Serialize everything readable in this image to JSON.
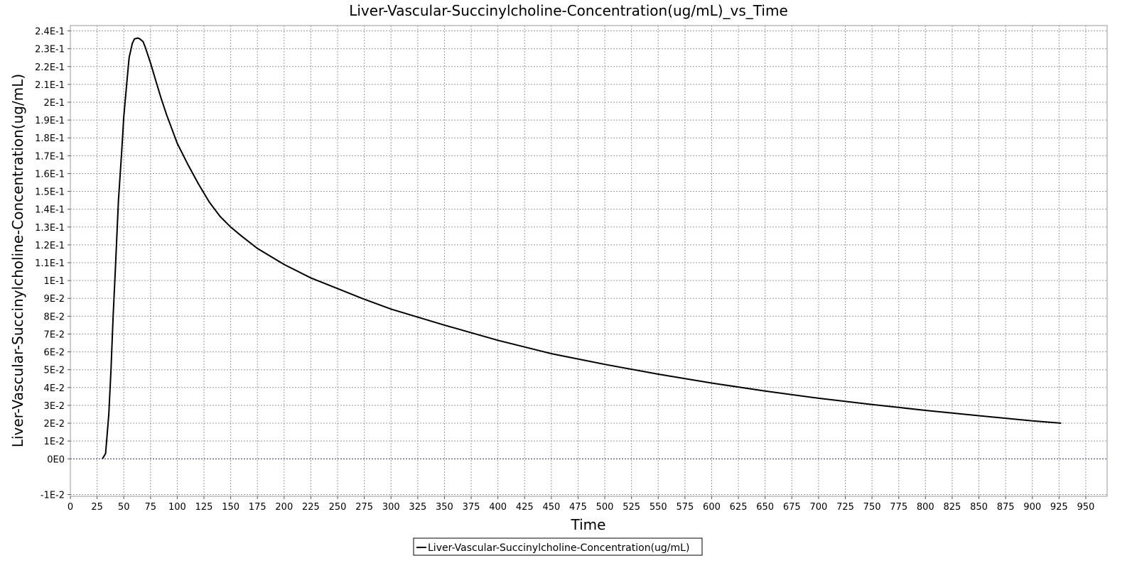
{
  "chart_data": {
    "type": "line",
    "title": "Liver-Vascular-Succinylcholine-Concentration(ug/mL)_vs_Time",
    "xlabel": "Time",
    "ylabel": "Liver-Vascular-Succinylcholine-Concentration(ug/mL)",
    "xlim": [
      0,
      970
    ],
    "ylim": [
      -0.021,
      0.243
    ],
    "grid": true,
    "legend_position": "bottom-center",
    "x_ticks": [
      0,
      25,
      50,
      75,
      100,
      125,
      150,
      175,
      200,
      225,
      250,
      275,
      300,
      325,
      350,
      375,
      400,
      425,
      450,
      475,
      500,
      525,
      550,
      575,
      600,
      625,
      650,
      675,
      700,
      725,
      750,
      775,
      800,
      825,
      850,
      875,
      900,
      925,
      950
    ],
    "y_ticks": [
      {
        "value": -0.02,
        "label": "-1E-2"
      },
      {
        "value": 0.0,
        "label": "0E0"
      },
      {
        "value": 0.01,
        "label": "1E-2"
      },
      {
        "value": 0.02,
        "label": "2E-2"
      },
      {
        "value": 0.03,
        "label": "3E-2"
      },
      {
        "value": 0.04,
        "label": "4E-2"
      },
      {
        "value": 0.05,
        "label": "5E-2"
      },
      {
        "value": 0.06,
        "label": "6E-2"
      },
      {
        "value": 0.07,
        "label": "7E-2"
      },
      {
        "value": 0.08,
        "label": "8E-2"
      },
      {
        "value": 0.09,
        "label": "9E-2"
      },
      {
        "value": 0.1,
        "label": "1E-1"
      },
      {
        "value": 0.11,
        "label": "1.1E-1"
      },
      {
        "value": 0.12,
        "label": "1.2E-1"
      },
      {
        "value": 0.13,
        "label": "1.3E-1"
      },
      {
        "value": 0.14,
        "label": "1.4E-1"
      },
      {
        "value": 0.15,
        "label": "1.5E-1"
      },
      {
        "value": 0.16,
        "label": "1.6E-1"
      },
      {
        "value": 0.17,
        "label": "1.7E-1"
      },
      {
        "value": 0.18,
        "label": "1.8E-1"
      },
      {
        "value": 0.19,
        "label": "1.9E-1"
      },
      {
        "value": 0.2,
        "label": "2E-1"
      },
      {
        "value": 0.21,
        "label": "2.1E-1"
      },
      {
        "value": 0.22,
        "label": "2.2E-1"
      },
      {
        "value": 0.23,
        "label": "2.3E-1"
      },
      {
        "value": 0.24,
        "label": "2.4E-1"
      }
    ],
    "zero_line": true,
    "series": [
      {
        "name": "Liver-Vascular-Succinylcholine-Concentration(ug/mL)",
        "color": "#000000",
        "x": [
          30,
          33,
          36,
          38,
          40,
          42,
          45,
          48,
          50,
          53,
          55,
          58,
          60,
          63,
          65,
          68,
          70,
          75,
          80,
          85,
          90,
          95,
          100,
          110,
          120,
          130,
          140,
          150,
          160,
          175,
          200,
          225,
          250,
          275,
          300,
          350,
          400,
          450,
          500,
          550,
          600,
          650,
          700,
          750,
          800,
          850,
          900,
          927
        ],
        "y": [
          0.0,
          0.003,
          0.025,
          0.05,
          0.08,
          0.105,
          0.145,
          0.172,
          0.192,
          0.212,
          0.225,
          0.233,
          0.2355,
          0.236,
          0.2355,
          0.234,
          0.231,
          0.222,
          0.212,
          0.202,
          0.193,
          0.185,
          0.177,
          0.165,
          0.154,
          0.144,
          0.136,
          0.13,
          0.125,
          0.118,
          0.109,
          0.1015,
          0.0955,
          0.0895,
          0.084,
          0.075,
          0.0665,
          0.059,
          0.053,
          0.0475,
          0.0425,
          0.038,
          0.034,
          0.0305,
          0.0272,
          0.0242,
          0.0213,
          0.02
        ]
      }
    ]
  }
}
